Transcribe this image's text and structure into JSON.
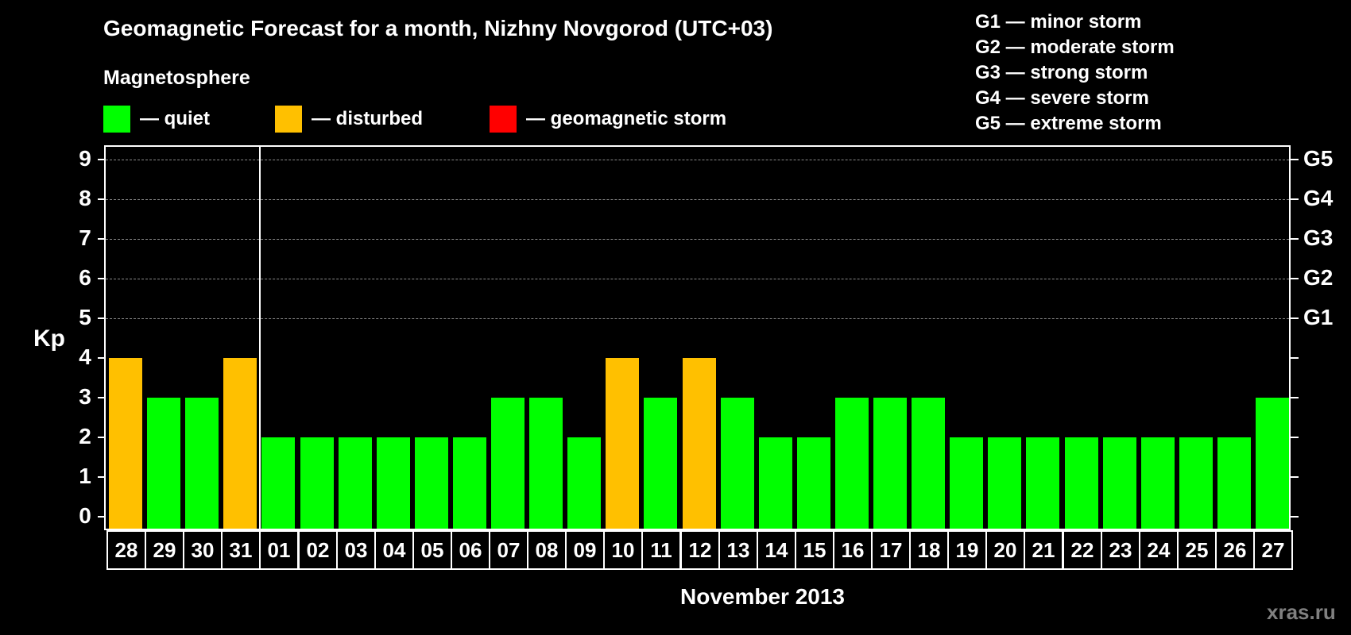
{
  "header": {
    "title": "Geomagnetic Forecast for a month, Nizhny Novgorod (UTC+03)",
    "subtitle": "Magnetosphere"
  },
  "legend": [
    {
      "label": "— quiet",
      "color": "#00ff00"
    },
    {
      "label": "— disturbed",
      "color": "#ffc000"
    },
    {
      "label": "— geomagnetic storm",
      "color": "#ff0000"
    }
  ],
  "storm_scale": [
    "G1 — minor storm",
    "G2 — moderate storm",
    "G3 — strong storm",
    "G4 — severe storm",
    "G5 — extreme storm"
  ],
  "axes": {
    "ylabel": "Kp",
    "xlabel": "November 2013",
    "yticks": [
      "0",
      "1",
      "2",
      "3",
      "4",
      "5",
      "6",
      "7",
      "8",
      "9"
    ],
    "right_ticks": [
      {
        "value": 5,
        "label": "G1"
      },
      {
        "value": 6,
        "label": "G2"
      },
      {
        "value": 7,
        "label": "G3"
      },
      {
        "value": 8,
        "label": "G4"
      },
      {
        "value": 9,
        "label": "G5"
      }
    ]
  },
  "watermark": "xras.ru",
  "chart_data": {
    "type": "bar",
    "title": "Geomagnetic Forecast for a month, Nizhny Novgorod (UTC+03)",
    "subtitle": "Magnetosphere",
    "xlabel": "November 2013",
    "ylabel": "Kp",
    "ylim": [
      0,
      9
    ],
    "grid": "dashed horizontal at 5,6,7,8,9",
    "legend": [
      {
        "label": "quiet",
        "color": "#00ff00"
      },
      {
        "label": "disturbed",
        "color": "#ffc000"
      },
      {
        "label": "geomagnetic storm",
        "color": "#ff0000"
      }
    ],
    "right_axis_labels": {
      "5": "G1",
      "6": "G2",
      "7": "G3",
      "8": "G4",
      "9": "G5"
    },
    "categories": [
      "28",
      "29",
      "30",
      "31",
      "01",
      "02",
      "03",
      "04",
      "05",
      "06",
      "07",
      "08",
      "09",
      "10",
      "11",
      "12",
      "13",
      "14",
      "15",
      "16",
      "17",
      "18",
      "19",
      "20",
      "21",
      "22",
      "23",
      "24",
      "25",
      "26",
      "27"
    ],
    "values": [
      4,
      3,
      3,
      4,
      2,
      2,
      2,
      2,
      2,
      2,
      3,
      3,
      2,
      4,
      3,
      4,
      3,
      2,
      2,
      3,
      3,
      3,
      2,
      2,
      2,
      2,
      2,
      2,
      2,
      2,
      3
    ],
    "status": [
      "disturbed",
      "quiet",
      "quiet",
      "disturbed",
      "quiet",
      "quiet",
      "quiet",
      "quiet",
      "quiet",
      "quiet",
      "quiet",
      "quiet",
      "quiet",
      "disturbed",
      "quiet",
      "disturbed",
      "quiet",
      "quiet",
      "quiet",
      "quiet",
      "quiet",
      "quiet",
      "quiet",
      "quiet",
      "quiet",
      "quiet",
      "quiet",
      "quiet",
      "quiet",
      "quiet",
      "quiet"
    ],
    "annotations": [
      "vertical divider between 31 and 01 (month boundary)"
    ]
  }
}
